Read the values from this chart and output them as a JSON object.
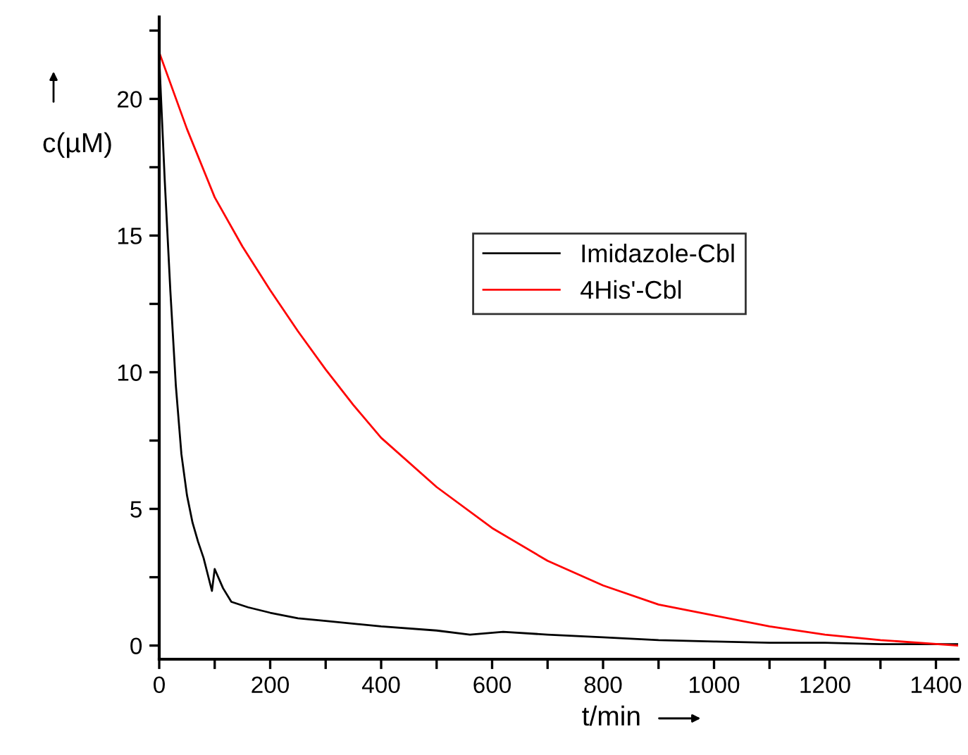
{
  "chart_data": {
    "type": "line",
    "xlabel": "t/min",
    "ylabel": "c(µM)",
    "xlim": [
      0,
      1440
    ],
    "ylim": [
      -0.5,
      23
    ],
    "xticks": [
      0,
      {
        "value": 100,
        "label": null
      },
      200,
      {
        "value": 300,
        "label": null
      },
      400,
      {
        "value": 500,
        "label": null
      },
      600,
      {
        "value": 700,
        "label": null
      },
      800,
      {
        "value": 900,
        "label": null
      },
      1000,
      {
        "value": 1100,
        "label": null
      },
      1200,
      {
        "value": 1300,
        "label": null
      },
      1400
    ],
    "yticks": [
      0,
      {
        "value": 2.5,
        "label": null
      },
      5,
      {
        "value": 7.5,
        "label": null
      },
      10,
      {
        "value": 12.5,
        "label": null
      },
      15,
      {
        "value": 17.5,
        "label": null
      },
      20,
      {
        "value": 22.5,
        "label": null
      }
    ],
    "grid": false,
    "legend": "right",
    "marker": "none",
    "line_style": "solid",
    "series": [
      {
        "name": "Imidazole-Cbl",
        "color": "#000000",
        "x": [
          0,
          10,
          20,
          30,
          40,
          50,
          60,
          70,
          80,
          95,
          100,
          115,
          130,
          160,
          200,
          250,
          300,
          400,
          500,
          560,
          620,
          700,
          800,
          900,
          1000,
          1100,
          1200,
          1300,
          1440
        ],
        "values": [
          21.5,
          17,
          13,
          9.5,
          7,
          5.5,
          4.5,
          3.8,
          3.2,
          2.0,
          2.8,
          2.1,
          1.6,
          1.4,
          1.2,
          1.0,
          0.9,
          0.7,
          0.55,
          0.4,
          0.5,
          0.4,
          0.3,
          0.2,
          0.15,
          0.1,
          0.1,
          0.05,
          0.05
        ]
      },
      {
        "name": "4His'-Cbl",
        "color": "#ff0000",
        "x": [
          0,
          50,
          100,
          150,
          200,
          250,
          300,
          350,
          400,
          500,
          600,
          700,
          800,
          900,
          1000,
          1100,
          1200,
          1300,
          1440
        ],
        "values": [
          21.7,
          18.9,
          16.4,
          14.6,
          13.0,
          11.5,
          10.1,
          8.8,
          7.6,
          5.8,
          4.3,
          3.1,
          2.2,
          1.5,
          1.1,
          0.7,
          0.4,
          0.2,
          0.0
        ]
      }
    ]
  }
}
